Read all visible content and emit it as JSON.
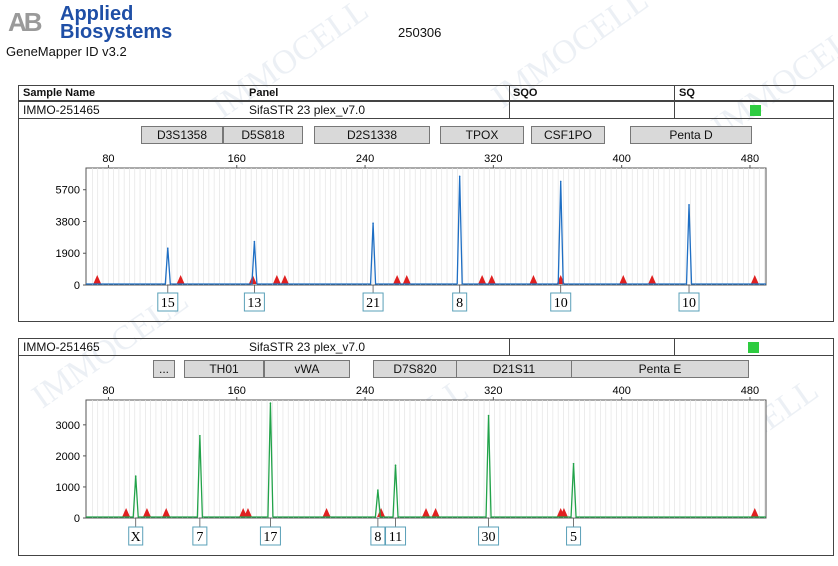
{
  "header": {
    "logo_abbr": "AB",
    "logo_line1": "Applied",
    "logo_line2": "Biosystems",
    "software": "GeneMapper ID v3.2",
    "run_id": "250306"
  },
  "table_header": {
    "sample_name": "Sample Name",
    "panel": "Panel",
    "sqo": "SQO",
    "sq": "SQ"
  },
  "watermark": "IMMOCELL",
  "colors": {
    "blue": "#1f6fc4",
    "green": "#22a34a",
    "red": "#e02020",
    "quality": "#2ecc40"
  },
  "panels": [
    {
      "sample": "IMMO-251465",
      "panel": "SifaSTR 23 plex_v7.0",
      "markers": [
        "D3S1358",
        "D5S818",
        "D2S1338",
        "TPOX",
        "CSF1PO",
        "Penta D"
      ],
      "color": "blue"
    },
    {
      "sample": "IMMO-251465",
      "panel": "SifaSTR 23 plex_v7.0",
      "markers": [
        "...",
        "TH01",
        "vWA",
        "D7S820",
        "D21S11",
        "Penta E"
      ],
      "color": "green"
    }
  ],
  "chart_data": [
    {
      "type": "line",
      "xticks": [
        80,
        160,
        240,
        320,
        400,
        480
      ],
      "yticks": [
        0,
        1900,
        3800,
        5700
      ],
      "xlim": [
        66,
        490
      ],
      "ylim": [
        0,
        7000
      ],
      "peaks": [
        {
          "x": 117,
          "y": 2200
        },
        {
          "x": 171,
          "y": 2600
        },
        {
          "x": 245,
          "y": 3700
        },
        {
          "x": 299,
          "y": 6500
        },
        {
          "x": 362,
          "y": 6200
        },
        {
          "x": 442,
          "y": 4800
        }
      ],
      "alleles": [
        {
          "x": 117,
          "label": "15"
        },
        {
          "x": 171,
          "label": "13"
        },
        {
          "x": 245,
          "label": "21"
        },
        {
          "x": 299,
          "label": "8"
        },
        {
          "x": 362,
          "label": "10"
        },
        {
          "x": 442,
          "label": "10"
        }
      ],
      "markers_red": [
        73,
        125,
        170,
        185,
        190,
        260,
        266,
        313,
        319,
        345,
        362,
        401,
        419,
        483
      ]
    },
    {
      "type": "line",
      "xticks": [
        80,
        160,
        240,
        320,
        400,
        480
      ],
      "yticks": [
        0,
        1000,
        2000,
        3000
      ],
      "xlim": [
        66,
        490
      ],
      "ylim": [
        0,
        3800
      ],
      "peaks": [
        {
          "x": 97,
          "y": 1350
        },
        {
          "x": 137,
          "y": 2650
        },
        {
          "x": 181,
          "y": 3700
        },
        {
          "x": 248,
          "y": 900
        },
        {
          "x": 259,
          "y": 1700
        },
        {
          "x": 317,
          "y": 3300
        },
        {
          "x": 370,
          "y": 1750
        }
      ],
      "alleles": [
        {
          "x": 97,
          "label": "X"
        },
        {
          "x": 137,
          "label": "7"
        },
        {
          "x": 181,
          "label": "17"
        },
        {
          "x": 248,
          "label": "8"
        },
        {
          "x": 259,
          "label": "11"
        },
        {
          "x": 317,
          "label": "30"
        },
        {
          "x": 370,
          "label": "5"
        }
      ],
      "markers_red": [
        91,
        104,
        116,
        164,
        167,
        216,
        250,
        278,
        284,
        362,
        364,
        483
      ]
    }
  ]
}
